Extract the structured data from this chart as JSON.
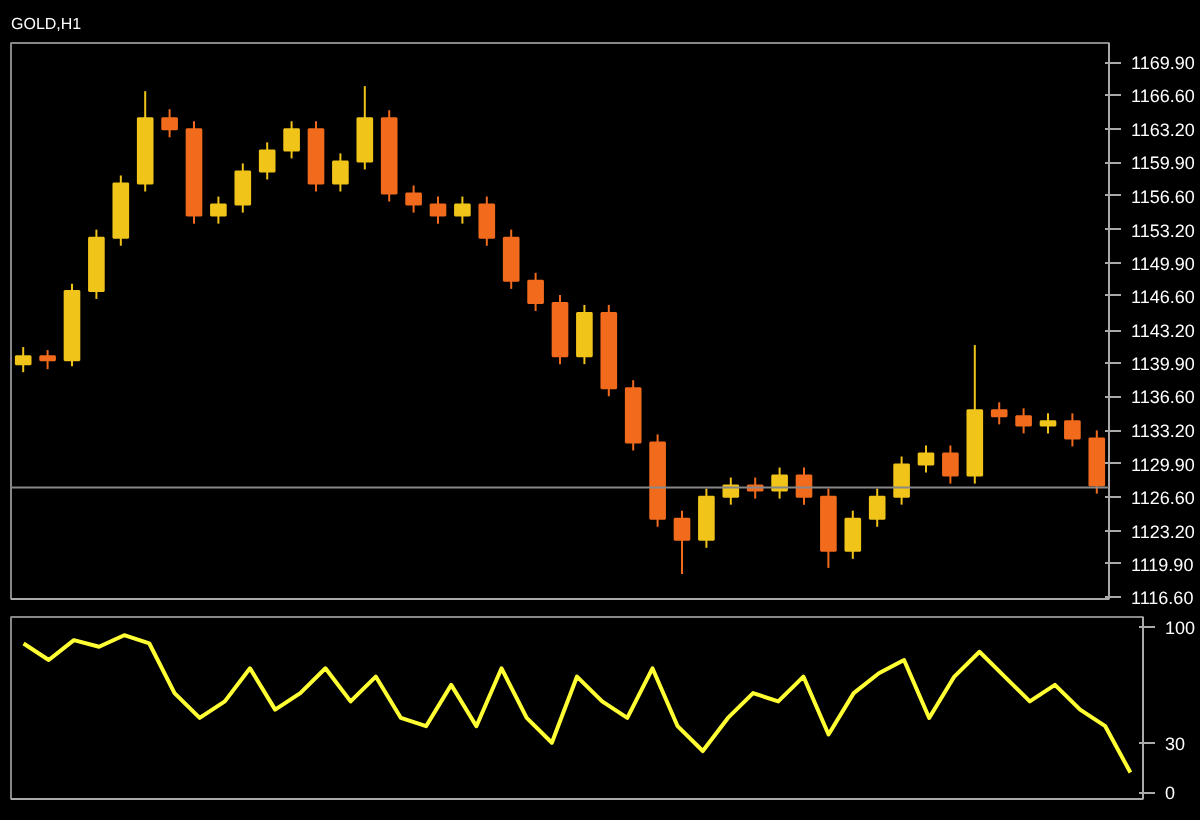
{
  "chart_data": [
    {
      "type": "candlestick",
      "title": "GOLD,H1",
      "categories": [
        null,
        null,
        null,
        null,
        null,
        null,
        null,
        null,
        null,
        null,
        null,
        null,
        null,
        null,
        null,
        null,
        null,
        null,
        null,
        null,
        null,
        null,
        null,
        null,
        null,
        null,
        null,
        null,
        null,
        null,
        null,
        null,
        null,
        null,
        null,
        null,
        null,
        null,
        null,
        null,
        null,
        null,
        null,
        null,
        null
      ],
      "ohlc": [
        [
          1139.8,
          1141.5,
          1139.0,
          1140.6
        ],
        [
          1140.6,
          1141.2,
          1139.3,
          1140.2
        ],
        [
          1140.2,
          1147.8,
          1139.6,
          1147.1
        ],
        [
          1147.1,
          1153.2,
          1146.3,
          1152.4
        ],
        [
          1152.4,
          1158.6,
          1151.6,
          1157.8
        ],
        [
          1157.8,
          1167.0,
          1157.0,
          1164.3
        ],
        [
          1164.3,
          1165.2,
          1162.4,
          1163.2
        ],
        [
          1163.2,
          1164.0,
          1153.8,
          1154.6
        ],
        [
          1154.6,
          1156.5,
          1153.8,
          1155.7
        ],
        [
          1155.7,
          1159.8,
          1154.9,
          1159.0
        ],
        [
          1159.0,
          1161.9,
          1158.2,
          1161.1
        ],
        [
          1161.1,
          1164.0,
          1160.3,
          1163.2
        ],
        [
          1163.2,
          1164.0,
          1157.0,
          1157.8
        ],
        [
          1157.8,
          1160.8,
          1157.0,
          1160.0
        ],
        [
          1160.0,
          1167.5,
          1159.2,
          1164.3
        ],
        [
          1164.3,
          1165.1,
          1156.0,
          1156.8
        ],
        [
          1156.8,
          1157.6,
          1154.9,
          1155.7
        ],
        [
          1155.7,
          1156.5,
          1153.8,
          1154.6
        ],
        [
          1154.6,
          1156.5,
          1153.8,
          1155.7
        ],
        [
          1155.7,
          1156.5,
          1151.6,
          1152.4
        ],
        [
          1152.4,
          1153.2,
          1147.3,
          1148.1
        ],
        [
          1148.1,
          1148.9,
          1145.1,
          1145.9
        ],
        [
          1145.9,
          1146.7,
          1139.8,
          1140.6
        ],
        [
          1140.6,
          1145.7,
          1139.8,
          1144.9
        ],
        [
          1144.9,
          1145.7,
          1136.6,
          1137.4
        ],
        [
          1137.4,
          1138.2,
          1131.2,
          1132.0
        ],
        [
          1132.0,
          1132.8,
          1123.6,
          1124.4
        ],
        [
          1124.4,
          1125.2,
          1118.9,
          1122.3
        ],
        [
          1122.3,
          1127.4,
          1121.5,
          1126.6
        ],
        [
          1126.6,
          1128.5,
          1125.8,
          1127.7
        ],
        [
          1127.7,
          1128.5,
          1126.4,
          1127.2
        ],
        [
          1127.2,
          1129.5,
          1126.4,
          1128.7
        ],
        [
          1128.7,
          1129.5,
          1125.8,
          1126.6
        ],
        [
          1126.6,
          1127.4,
          1119.5,
          1121.2
        ],
        [
          1121.2,
          1125.2,
          1120.4,
          1124.4
        ],
        [
          1124.4,
          1127.4,
          1123.6,
          1126.6
        ],
        [
          1126.6,
          1130.6,
          1125.8,
          1129.8
        ],
        [
          1129.8,
          1131.7,
          1129.0,
          1130.9
        ],
        [
          1130.9,
          1131.7,
          1127.9,
          1128.7
        ],
        [
          1128.7,
          1141.7,
          1127.9,
          1135.2
        ],
        [
          1135.2,
          1136.0,
          1133.8,
          1134.6
        ],
        [
          1134.6,
          1135.4,
          1132.9,
          1133.7
        ],
        [
          1133.7,
          1134.9,
          1132.9,
          1134.1
        ],
        [
          1134.1,
          1134.9,
          1131.6,
          1132.4
        ],
        [
          1132.4,
          1133.2,
          1126.9,
          1127.7
        ]
      ],
      "colors": [
        "#f0c419",
        "#f26b1d",
        "#f0c419",
        "#f0c419",
        "#f0c419",
        "#f0c419",
        "#f26b1d",
        "#f26b1d",
        "#f0c419",
        "#f0c419",
        "#f0c419",
        "#f0c419",
        "#f26b1d",
        "#f0c419",
        "#f0c419",
        "#f26b1d",
        "#f26b1d",
        "#f26b1d",
        "#f0c419",
        "#f26b1d",
        "#f26b1d",
        "#f26b1d",
        "#f26b1d",
        "#f0c419",
        "#f26b1d",
        "#f26b1d",
        "#f26b1d",
        "#f26b1d",
        "#f0c419",
        "#f0c419",
        "#f26b1d",
        "#f0c419",
        "#f26b1d",
        "#f26b1d",
        "#f0c419",
        "#f0c419",
        "#f0c419",
        "#f0c419",
        "#f26b1d",
        "#f0c419",
        "#f26b1d",
        "#f26b1d",
        "#f0c419",
        "#f26b1d",
        "#f26b1d"
      ],
      "ref_lines": [
        {
          "axis": "y",
          "value": 1127.5,
          "color": "#888888"
        }
      ],
      "ylim": [
        1116.4,
        1171.8
      ],
      "yticks": [
        {
          "value": 1169.9,
          "label": "1169.90"
        },
        {
          "value": 1166.6,
          "label": "1166.60"
        },
        {
          "value": 1163.2,
          "label": "1163.20"
        },
        {
          "value": 1159.9,
          "label": "1159.90"
        },
        {
          "value": 1156.6,
          "label": "1156.60"
        },
        {
          "value": 1153.2,
          "label": "1153.20"
        },
        {
          "value": 1149.9,
          "label": "1149.90"
        },
        {
          "value": 1146.6,
          "label": "1146.60"
        },
        {
          "value": 1143.2,
          "label": "1143.20"
        },
        {
          "value": 1139.9,
          "label": "1139.90"
        },
        {
          "value": 1136.6,
          "label": "1136.60"
        },
        {
          "value": 1133.2,
          "label": "1133.20"
        },
        {
          "value": 1129.9,
          "label": "1129.90"
        },
        {
          "value": 1126.6,
          "label": "1126.60"
        },
        {
          "value": 1123.2,
          "label": "1123.20"
        },
        {
          "value": 1119.9,
          "label": "1119.90"
        },
        {
          "value": 1116.6,
          "label": "1116.60"
        }
      ],
      "tick_labels": "y",
      "grid": false
    },
    {
      "type": "line",
      "categories": [
        null,
        null,
        null,
        null,
        null,
        null,
        null,
        null,
        null,
        null,
        null,
        null,
        null,
        null,
        null,
        null,
        null,
        null,
        null,
        null,
        null,
        null,
        null,
        null,
        null,
        null,
        null,
        null,
        null,
        null,
        null,
        null,
        null,
        null,
        null,
        null,
        null,
        null,
        null,
        null,
        null,
        null,
        null,
        null,
        null
      ],
      "series": [
        {
          "color": "#ffff33",
          "values": [
            90,
            80,
            92,
            88,
            95,
            90,
            60,
            45,
            55,
            75,
            50,
            60,
            75,
            55,
            70,
            45,
            40,
            65,
            40,
            75,
            45,
            30,
            70,
            55,
            45,
            75,
            40,
            25,
            45,
            60,
            55,
            70,
            35,
            60,
            72,
            80,
            45,
            70,
            85,
            70,
            55,
            65,
            50,
            40,
            12
          ]
        }
      ],
      "ylim": [
        -4,
        106
      ],
      "yticks": [
        0,
        30,
        100
      ],
      "tick_labels": "y",
      "grid": false
    }
  ]
}
